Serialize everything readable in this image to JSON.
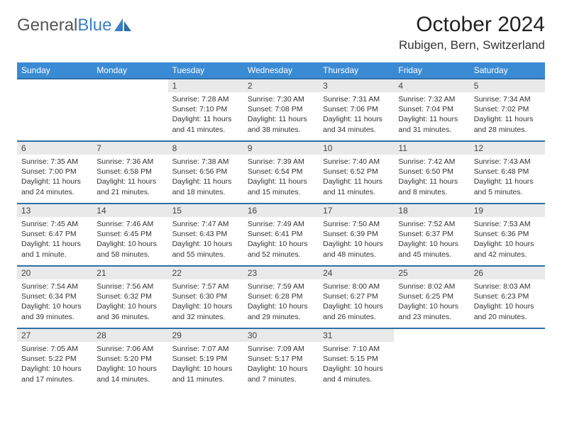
{
  "brand": {
    "part1": "General",
    "part2": "Blue"
  },
  "title": "October 2024",
  "location": "Rubigen, Bern, Switzerland",
  "colors": {
    "header_bg": "#3b8bd4",
    "rule": "#2f6fa8",
    "daynum_bg": "#e9e9e9",
    "text": "#333333"
  },
  "weekdays": [
    "Sunday",
    "Monday",
    "Tuesday",
    "Wednesday",
    "Thursday",
    "Friday",
    "Saturday"
  ],
  "weeks": [
    [
      null,
      null,
      {
        "n": "1",
        "sunrise": "Sunrise: 7:28 AM",
        "sunset": "Sunset: 7:10 PM",
        "daylight": "Daylight: 11 hours and 41 minutes."
      },
      {
        "n": "2",
        "sunrise": "Sunrise: 7:30 AM",
        "sunset": "Sunset: 7:08 PM",
        "daylight": "Daylight: 11 hours and 38 minutes."
      },
      {
        "n": "3",
        "sunrise": "Sunrise: 7:31 AM",
        "sunset": "Sunset: 7:06 PM",
        "daylight": "Daylight: 11 hours and 34 minutes."
      },
      {
        "n": "4",
        "sunrise": "Sunrise: 7:32 AM",
        "sunset": "Sunset: 7:04 PM",
        "daylight": "Daylight: 11 hours and 31 minutes."
      },
      {
        "n": "5",
        "sunrise": "Sunrise: 7:34 AM",
        "sunset": "Sunset: 7:02 PM",
        "daylight": "Daylight: 11 hours and 28 minutes."
      }
    ],
    [
      {
        "n": "6",
        "sunrise": "Sunrise: 7:35 AM",
        "sunset": "Sunset: 7:00 PM",
        "daylight": "Daylight: 11 hours and 24 minutes."
      },
      {
        "n": "7",
        "sunrise": "Sunrise: 7:36 AM",
        "sunset": "Sunset: 6:58 PM",
        "daylight": "Daylight: 11 hours and 21 minutes."
      },
      {
        "n": "8",
        "sunrise": "Sunrise: 7:38 AM",
        "sunset": "Sunset: 6:56 PM",
        "daylight": "Daylight: 11 hours and 18 minutes."
      },
      {
        "n": "9",
        "sunrise": "Sunrise: 7:39 AM",
        "sunset": "Sunset: 6:54 PM",
        "daylight": "Daylight: 11 hours and 15 minutes."
      },
      {
        "n": "10",
        "sunrise": "Sunrise: 7:40 AM",
        "sunset": "Sunset: 6:52 PM",
        "daylight": "Daylight: 11 hours and 11 minutes."
      },
      {
        "n": "11",
        "sunrise": "Sunrise: 7:42 AM",
        "sunset": "Sunset: 6:50 PM",
        "daylight": "Daylight: 11 hours and 8 minutes."
      },
      {
        "n": "12",
        "sunrise": "Sunrise: 7:43 AM",
        "sunset": "Sunset: 6:48 PM",
        "daylight": "Daylight: 11 hours and 5 minutes."
      }
    ],
    [
      {
        "n": "13",
        "sunrise": "Sunrise: 7:45 AM",
        "sunset": "Sunset: 6:47 PM",
        "daylight": "Daylight: 11 hours and 1 minute."
      },
      {
        "n": "14",
        "sunrise": "Sunrise: 7:46 AM",
        "sunset": "Sunset: 6:45 PM",
        "daylight": "Daylight: 10 hours and 58 minutes."
      },
      {
        "n": "15",
        "sunrise": "Sunrise: 7:47 AM",
        "sunset": "Sunset: 6:43 PM",
        "daylight": "Daylight: 10 hours and 55 minutes."
      },
      {
        "n": "16",
        "sunrise": "Sunrise: 7:49 AM",
        "sunset": "Sunset: 6:41 PM",
        "daylight": "Daylight: 10 hours and 52 minutes."
      },
      {
        "n": "17",
        "sunrise": "Sunrise: 7:50 AM",
        "sunset": "Sunset: 6:39 PM",
        "daylight": "Daylight: 10 hours and 48 minutes."
      },
      {
        "n": "18",
        "sunrise": "Sunrise: 7:52 AM",
        "sunset": "Sunset: 6:37 PM",
        "daylight": "Daylight: 10 hours and 45 minutes."
      },
      {
        "n": "19",
        "sunrise": "Sunrise: 7:53 AM",
        "sunset": "Sunset: 6:36 PM",
        "daylight": "Daylight: 10 hours and 42 minutes."
      }
    ],
    [
      {
        "n": "20",
        "sunrise": "Sunrise: 7:54 AM",
        "sunset": "Sunset: 6:34 PM",
        "daylight": "Daylight: 10 hours and 39 minutes."
      },
      {
        "n": "21",
        "sunrise": "Sunrise: 7:56 AM",
        "sunset": "Sunset: 6:32 PM",
        "daylight": "Daylight: 10 hours and 36 minutes."
      },
      {
        "n": "22",
        "sunrise": "Sunrise: 7:57 AM",
        "sunset": "Sunset: 6:30 PM",
        "daylight": "Daylight: 10 hours and 32 minutes."
      },
      {
        "n": "23",
        "sunrise": "Sunrise: 7:59 AM",
        "sunset": "Sunset: 6:28 PM",
        "daylight": "Daylight: 10 hours and 29 minutes."
      },
      {
        "n": "24",
        "sunrise": "Sunrise: 8:00 AM",
        "sunset": "Sunset: 6:27 PM",
        "daylight": "Daylight: 10 hours and 26 minutes."
      },
      {
        "n": "25",
        "sunrise": "Sunrise: 8:02 AM",
        "sunset": "Sunset: 6:25 PM",
        "daylight": "Daylight: 10 hours and 23 minutes."
      },
      {
        "n": "26",
        "sunrise": "Sunrise: 8:03 AM",
        "sunset": "Sunset: 6:23 PM",
        "daylight": "Daylight: 10 hours and 20 minutes."
      }
    ],
    [
      {
        "n": "27",
        "sunrise": "Sunrise: 7:05 AM",
        "sunset": "Sunset: 5:22 PM",
        "daylight": "Daylight: 10 hours and 17 minutes."
      },
      {
        "n": "28",
        "sunrise": "Sunrise: 7:06 AM",
        "sunset": "Sunset: 5:20 PM",
        "daylight": "Daylight: 10 hours and 14 minutes."
      },
      {
        "n": "29",
        "sunrise": "Sunrise: 7:07 AM",
        "sunset": "Sunset: 5:19 PM",
        "daylight": "Daylight: 10 hours and 11 minutes."
      },
      {
        "n": "30",
        "sunrise": "Sunrise: 7:09 AM",
        "sunset": "Sunset: 5:17 PM",
        "daylight": "Daylight: 10 hours and 7 minutes."
      },
      {
        "n": "31",
        "sunrise": "Sunrise: 7:10 AM",
        "sunset": "Sunset: 5:15 PM",
        "daylight": "Daylight: 10 hours and 4 minutes."
      },
      null,
      null
    ]
  ]
}
